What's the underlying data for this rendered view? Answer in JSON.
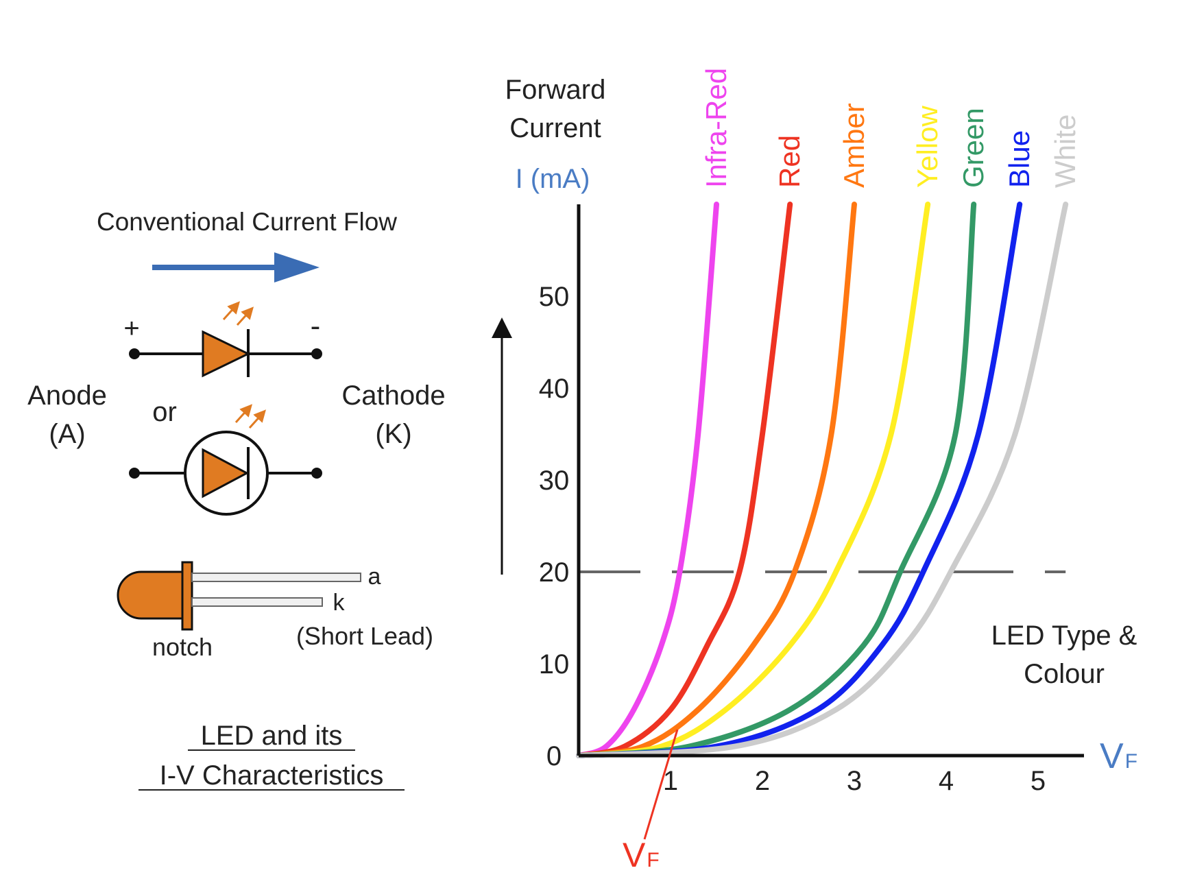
{
  "left_panel": {
    "flow_label": "Conventional Current Flow",
    "plus": "+",
    "minus": "-",
    "anode_line1": "Anode",
    "anode_line2": "(A)",
    "or_label": "or",
    "cathode_line1": "Cathode",
    "cathode_line2": "(K)",
    "lead_a": "a",
    "lead_k": "k",
    "notch": "notch",
    "short_lead": "(Short Lead)",
    "caption_line1": "LED and its",
    "caption_line2": "I-V Characteristics"
  },
  "graph": {
    "ylabel_line1": "Forward",
    "ylabel_line2": "Current",
    "ylabel_unit": "I (mA)",
    "x_axis_label": "V",
    "x_axis_sub": "F",
    "vf_marker_label": "V",
    "vf_marker_sub": "F",
    "type_label_line1": "LED Type &",
    "type_label_line2": "Colour"
  },
  "chart_data": {
    "type": "line",
    "x_ticks": [
      "1",
      "2",
      "3",
      "4",
      "5"
    ],
    "y_ticks": [
      "0",
      "10",
      "20",
      "30",
      "40",
      "50"
    ],
    "xlim": [
      0,
      5.5
    ],
    "ylim": [
      0,
      60
    ],
    "reference_line_y": 20,
    "series": [
      {
        "name": "Infra-Red",
        "color": "#ee44ee",
        "x": [
          0,
          0.3,
          0.6,
          0.9,
          1.1,
          1.3,
          1.5
        ],
        "y": [
          0,
          1,
          5,
          12,
          20,
          35,
          60
        ]
      },
      {
        "name": "Red",
        "color": "#ee3322",
        "x": [
          0,
          0.5,
          1.0,
          1.4,
          1.75,
          2.0,
          2.3
        ],
        "y": [
          0,
          1,
          5,
          12,
          20,
          35,
          60
        ]
      },
      {
        "name": "Amber",
        "color": "#ff7711",
        "x": [
          0,
          0.7,
          1.3,
          1.9,
          2.35,
          2.75,
          3.0
        ],
        "y": [
          0,
          1,
          5,
          12,
          20,
          35,
          60
        ]
      },
      {
        "name": "Yellow",
        "color": "#ffee22",
        "x": [
          0,
          0.9,
          1.6,
          2.3,
          2.8,
          3.4,
          3.8
        ],
        "y": [
          0,
          1,
          5,
          12,
          20,
          35,
          60
        ]
      },
      {
        "name": "Green",
        "color": "#339966",
        "x": [
          0,
          1.2,
          2.3,
          3.1,
          3.5,
          4.1,
          4.3
        ],
        "y": [
          0,
          1,
          5,
          12,
          20,
          35,
          60
        ]
      },
      {
        "name": "Blue",
        "color": "#1122ee",
        "x": [
          0,
          1.5,
          2.6,
          3.3,
          3.75,
          4.35,
          4.8
        ],
        "y": [
          0,
          1,
          5,
          12,
          20,
          35,
          60
        ]
      },
      {
        "name": "White",
        "color": "#cccccc",
        "x": [
          0,
          1.7,
          2.8,
          3.55,
          4.05,
          4.75,
          5.3
        ],
        "y": [
          0,
          1,
          5,
          12,
          20,
          35,
          60
        ]
      }
    ]
  }
}
